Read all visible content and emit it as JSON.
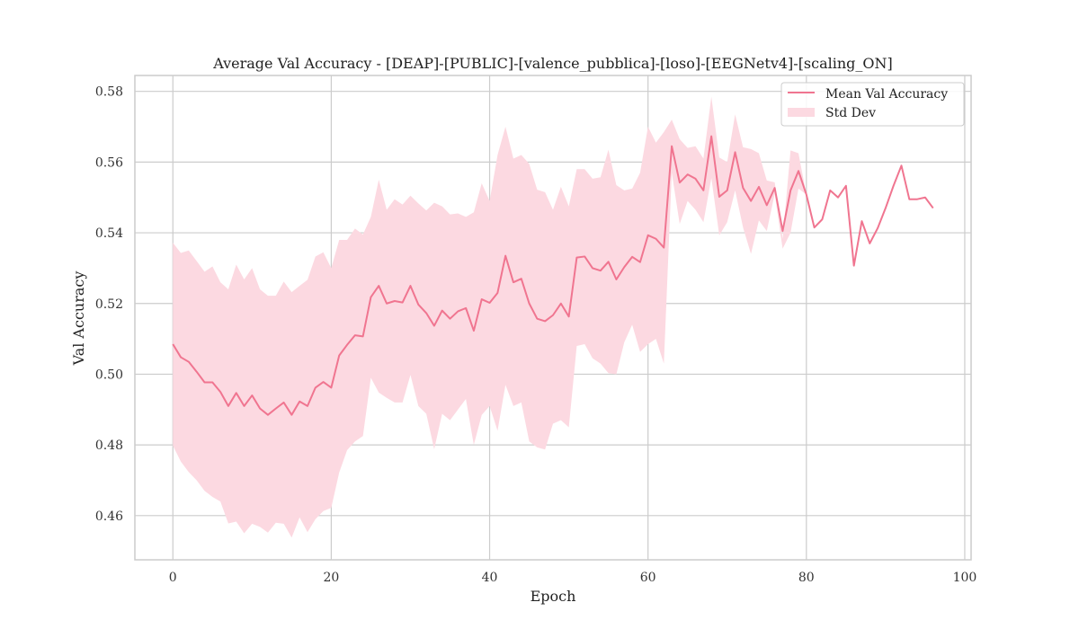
{
  "chart_data": {
    "type": "line",
    "title": "Average Val Accuracy - [DEAP]-[PUBLIC]-[valence_pubblica]-[loso]-[EEGNetv4]-[scaling_ON]",
    "xlabel": "Epoch",
    "ylabel": "Val Accuracy",
    "xlim": [
      -4.8,
      100.8
    ],
    "ylim": [
      0.4475,
      0.5845
    ],
    "xticks": [
      0,
      20,
      40,
      60,
      80,
      100
    ],
    "yticks": [
      0.46,
      0.48,
      0.5,
      0.52,
      0.54,
      0.56,
      0.58
    ],
    "xtick_labels": [
      "0",
      "20",
      "40",
      "60",
      "80",
      "100"
    ],
    "ytick_labels": [
      "0.46",
      "0.48",
      "0.50",
      "0.52",
      "0.54",
      "0.56",
      "0.58"
    ],
    "grid": true,
    "legend_position": "top-right",
    "colors": {
      "line": "#f07590",
      "band": "#fcd9e1",
      "grid": "#cccccc",
      "frame": "#cccccc"
    },
    "x": [
      0,
      1,
      2,
      3,
      4,
      5,
      6,
      7,
      8,
      9,
      10,
      11,
      12,
      13,
      14,
      15,
      16,
      17,
      18,
      19,
      20,
      21,
      22,
      23,
      24,
      25,
      26,
      27,
      28,
      29,
      30,
      31,
      32,
      33,
      34,
      35,
      36,
      37,
      38,
      39,
      40,
      41,
      42,
      43,
      44,
      45,
      46,
      47,
      48,
      49,
      50,
      51,
      52,
      53,
      54,
      55,
      56,
      57,
      58,
      59,
      60,
      61,
      62,
      63,
      64,
      65,
      66,
      67,
      68,
      69,
      70,
      71,
      72,
      73,
      74,
      75,
      76,
      77,
      78,
      79,
      80,
      81,
      82,
      83,
      84,
      85,
      86,
      87,
      88,
      89,
      90,
      91,
      92,
      93,
      94,
      95,
      96
    ],
    "series": [
      {
        "name": "Mean Val Accuracy",
        "values": [
          0.5085,
          0.5048,
          0.5035,
          0.5007,
          0.4977,
          0.4977,
          0.495,
          0.491,
          0.4947,
          0.491,
          0.494,
          0.4903,
          0.4885,
          0.4903,
          0.492,
          0.4885,
          0.4923,
          0.491,
          0.4962,
          0.4978,
          0.4962,
          0.5053,
          0.5083,
          0.511,
          0.5107,
          0.5218,
          0.525,
          0.52,
          0.5207,
          0.5203,
          0.525,
          0.5197,
          0.5173,
          0.5137,
          0.518,
          0.5157,
          0.5178,
          0.5187,
          0.5123,
          0.5212,
          0.5202,
          0.523,
          0.5335,
          0.526,
          0.527,
          0.52,
          0.5157,
          0.515,
          0.5167,
          0.52,
          0.5163,
          0.533,
          0.5333,
          0.53,
          0.5293,
          0.5318,
          0.5268,
          0.5303,
          0.5332,
          0.5317,
          0.5393,
          0.5383,
          0.5358,
          0.5645,
          0.5542,
          0.5565,
          0.5553,
          0.552,
          0.5673,
          0.5502,
          0.552,
          0.5628,
          0.5527,
          0.549,
          0.553,
          0.5478,
          0.5527,
          0.5405,
          0.552,
          0.5575,
          0.5508,
          0.5415,
          0.5438,
          0.552,
          0.55,
          0.5533,
          0.5307,
          0.5433,
          0.537,
          0.5413,
          0.547,
          0.5533,
          0.559,
          0.5495,
          0.5495,
          0.55,
          0.547
        ]
      },
      {
        "name": "Std Dev",
        "upper": [
          0.5372,
          0.5343,
          0.535,
          0.532,
          0.529,
          0.5305,
          0.526,
          0.524,
          0.531,
          0.5268,
          0.53,
          0.524,
          0.5222,
          0.5222,
          0.5262,
          0.5232,
          0.525,
          0.5267,
          0.5333,
          0.5345,
          0.53,
          0.538,
          0.538,
          0.5412,
          0.5395,
          0.5445,
          0.555,
          0.5465,
          0.5495,
          0.548,
          0.5505,
          0.5483,
          0.5463,
          0.5485,
          0.5475,
          0.5452,
          0.5455,
          0.5445,
          0.5458,
          0.554,
          0.549,
          0.562,
          0.57,
          0.561,
          0.562,
          0.5595,
          0.5522,
          0.5515,
          0.5465,
          0.553,
          0.5475,
          0.558,
          0.558,
          0.5553,
          0.5557,
          0.5635,
          0.5535,
          0.552,
          0.5525,
          0.557,
          0.57,
          0.5655,
          0.5685,
          0.572,
          0.5665,
          0.564,
          0.5645,
          0.561,
          0.5785,
          0.5613,
          0.56,
          0.5735,
          0.5642,
          0.5637,
          0.5625,
          0.5548,
          0.5543,
          0.5383,
          0.5633,
          0.5625,
          0.5508
        ],
        "lower": [
          0.4798,
          0.4753,
          0.4723,
          0.47,
          0.467,
          0.4653,
          0.464,
          0.4578,
          0.4583,
          0.455,
          0.4577,
          0.4568,
          0.4552,
          0.458,
          0.4577,
          0.4538,
          0.4595,
          0.4553,
          0.459,
          0.4613,
          0.4622,
          0.4722,
          0.4785,
          0.481,
          0.4825,
          0.499,
          0.4948,
          0.4933,
          0.492,
          0.492,
          0.4998,
          0.491,
          0.4888,
          0.4788,
          0.4888,
          0.487,
          0.49,
          0.493,
          0.48,
          0.4885,
          0.491,
          0.484,
          0.497,
          0.491,
          0.492,
          0.481,
          0.4793,
          0.4787,
          0.486,
          0.487,
          0.485,
          0.508,
          0.5085,
          0.5045,
          0.503,
          0.5003,
          0.5,
          0.509,
          0.514,
          0.5063,
          0.5085,
          0.51,
          0.503,
          0.557,
          0.5425,
          0.549,
          0.5465,
          0.543,
          0.5555,
          0.5393,
          0.543,
          0.552,
          0.5415,
          0.534,
          0.5435,
          0.5405,
          0.551,
          0.5355,
          0.54,
          0.5525,
          0.5508
        ]
      }
    ]
  }
}
